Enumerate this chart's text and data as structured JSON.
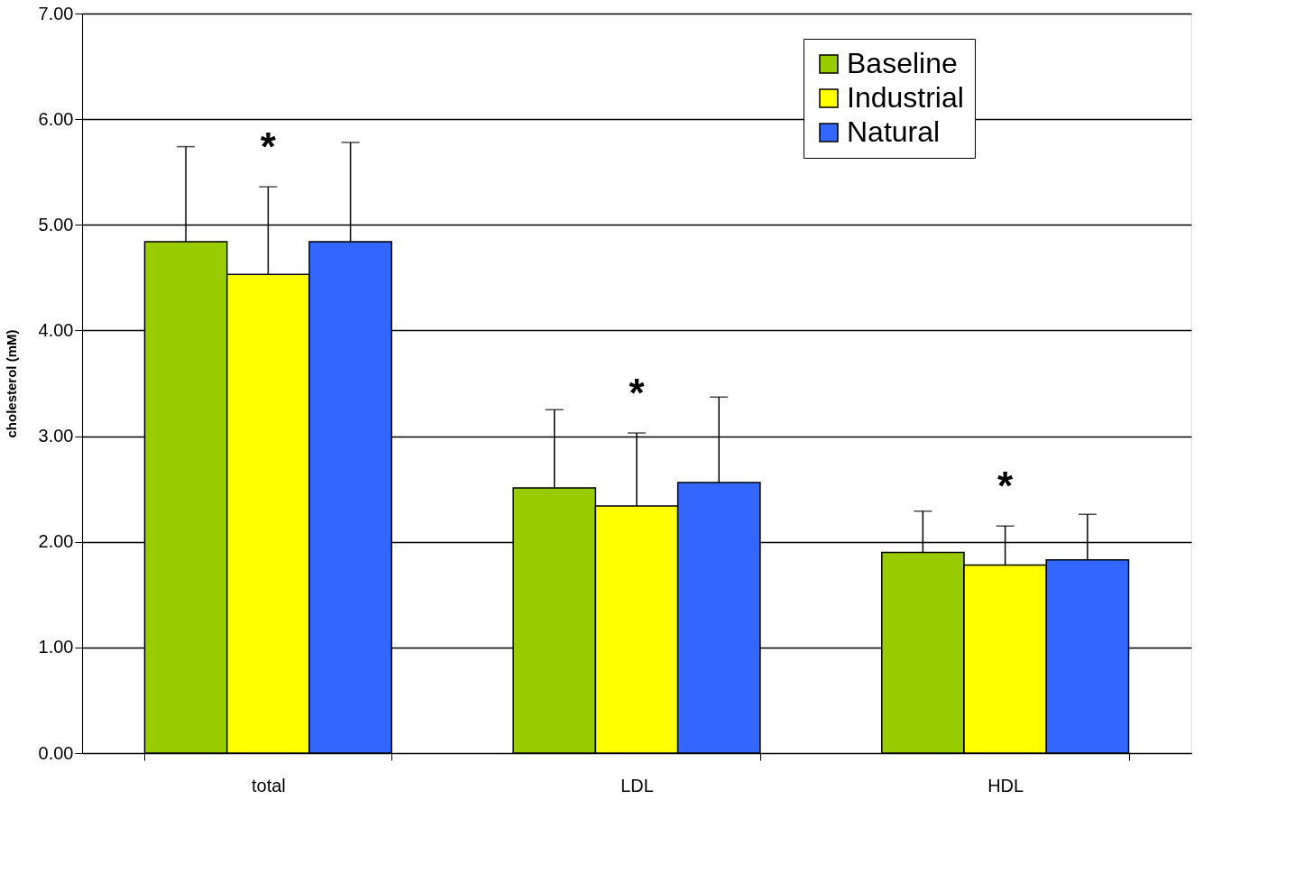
{
  "chart_data": {
    "type": "bar",
    "ylabel": "cholesterol (mM)",
    "categories": [
      "total",
      "LDL",
      "HDL"
    ],
    "series": [
      {
        "name": "Baseline",
        "color": "#99cc00",
        "values": [
          4.84,
          2.51,
          1.9
        ],
        "errors": [
          [
            4.84,
            5.74
          ],
          [
            2.51,
            3.25
          ],
          [
            1.9,
            2.29
          ]
        ]
      },
      {
        "name": "Industrial",
        "color": "#ffff00",
        "values": [
          4.53,
          2.34,
          1.78
        ],
        "errors": [
          [
            4.53,
            5.36
          ],
          [
            2.34,
            3.03
          ],
          [
            1.78,
            2.15
          ]
        ]
      },
      {
        "name": "Natural",
        "color": "#3366ff",
        "values": [
          4.84,
          2.56,
          1.83
        ],
        "errors": [
          [
            4.84,
            5.78
          ],
          [
            2.56,
            3.37
          ],
          [
            1.83,
            2.26
          ]
        ]
      }
    ],
    "ylim": [
      0,
      7
    ],
    "yticks": [
      {
        "value": 0,
        "label": "0.00"
      },
      {
        "value": 1,
        "label": "1.00"
      },
      {
        "value": 2,
        "label": "2.00"
      },
      {
        "value": 3,
        "label": "3.00"
      },
      {
        "value": 4,
        "label": "4.00"
      },
      {
        "value": 5,
        "label": "5.00"
      },
      {
        "value": 6,
        "label": "6.00"
      },
      {
        "value": 7,
        "label": "7.00"
      }
    ],
    "grid": "y",
    "legend": "top right",
    "annotations": [
      "*",
      "*",
      "*"
    ]
  }
}
